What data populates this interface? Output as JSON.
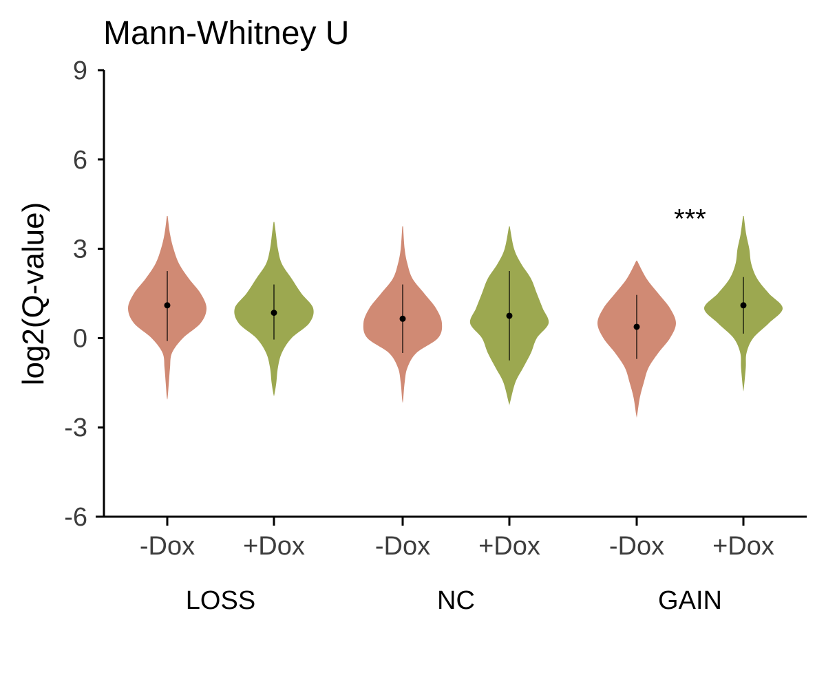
{
  "chart_data": {
    "type": "violin",
    "title": "Mann-Whitney U",
    "ylabel": "log2(Q-value)",
    "xlabel": "",
    "ylim": [
      -6,
      9
    ],
    "yticks": [
      "9",
      "6",
      "3",
      "0",
      "-3",
      "-6"
    ],
    "grid": false,
    "colors": {
      "minus_dox": "#d08a74",
      "plus_dox": "#9ca850"
    },
    "groups": [
      {
        "label": "LOSS",
        "violins": [
          {
            "tick": "-Dox",
            "median": 1.1,
            "line_lo": -0.1,
            "line_hi": 2.25,
            "min": -2.0,
            "max": 4.1,
            "profile": [
              [
                -2.0,
                0.01
              ],
              [
                -1.5,
                0.04
              ],
              [
                -1.0,
                0.07
              ],
              [
                -0.5,
                0.12
              ],
              [
                0.0,
                0.4
              ],
              [
                0.5,
                0.85
              ],
              [
                1.0,
                1.0
              ],
              [
                1.5,
                0.85
              ],
              [
                2.0,
                0.55
              ],
              [
                2.5,
                0.3
              ],
              [
                3.0,
                0.16
              ],
              [
                3.5,
                0.07
              ],
              [
                4.1,
                0.01
              ]
            ]
          },
          {
            "tick": "+Dox",
            "median": 0.85,
            "line_lo": -0.05,
            "line_hi": 1.8,
            "min": -1.9,
            "max": 3.9,
            "profile": [
              [
                -1.9,
                0.01
              ],
              [
                -1.5,
                0.06
              ],
              [
                -1.0,
                0.1
              ],
              [
                -0.5,
                0.2
              ],
              [
                0.0,
                0.45
              ],
              [
                0.5,
                0.9
              ],
              [
                1.0,
                1.0
              ],
              [
                1.5,
                0.7
              ],
              [
                2.0,
                0.45
              ],
              [
                2.5,
                0.2
              ],
              [
                3.0,
                0.1
              ],
              [
                3.5,
                0.05
              ],
              [
                3.9,
                0.01
              ]
            ]
          }
        ]
      },
      {
        "label": "NC",
        "violins": [
          {
            "tick": "-Dox",
            "median": 0.65,
            "line_lo": -0.5,
            "line_hi": 1.8,
            "min": -2.1,
            "max": 3.75,
            "profile": [
              [
                -2.1,
                0.01
              ],
              [
                -1.5,
                0.05
              ],
              [
                -1.0,
                0.12
              ],
              [
                -0.5,
                0.35
              ],
              [
                0.0,
                0.9
              ],
              [
                0.5,
                1.0
              ],
              [
                1.0,
                0.85
              ],
              [
                1.5,
                0.55
              ],
              [
                2.0,
                0.25
              ],
              [
                2.5,
                0.12
              ],
              [
                3.0,
                0.05
              ],
              [
                3.75,
                0.01
              ]
            ]
          },
          {
            "tick": "+Dox",
            "median": 0.75,
            "line_lo": -0.75,
            "line_hi": 2.25,
            "min": -2.2,
            "max": 3.75,
            "profile": [
              [
                -2.2,
                0.01
              ],
              [
                -1.5,
                0.15
              ],
              [
                -1.0,
                0.35
              ],
              [
                -0.5,
                0.55
              ],
              [
                0.0,
                0.7
              ],
              [
                0.5,
                1.0
              ],
              [
                1.0,
                0.85
              ],
              [
                1.5,
                0.7
              ],
              [
                2.0,
                0.55
              ],
              [
                2.5,
                0.3
              ],
              [
                3.0,
                0.12
              ],
              [
                3.75,
                0.01
              ]
            ]
          }
        ]
      },
      {
        "label": "GAIN",
        "violins": [
          {
            "tick": "-Dox",
            "median": 0.38,
            "line_lo": -0.7,
            "line_hi": 1.45,
            "min": -2.6,
            "max": 2.6,
            "profile": [
              [
                -2.6,
                0.01
              ],
              [
                -2.0,
                0.08
              ],
              [
                -1.5,
                0.18
              ],
              [
                -1.0,
                0.3
              ],
              [
                -0.5,
                0.55
              ],
              [
                0.0,
                0.85
              ],
              [
                0.5,
                1.0
              ],
              [
                1.0,
                0.85
              ],
              [
                1.5,
                0.55
              ],
              [
                2.0,
                0.25
              ],
              [
                2.6,
                0.01
              ]
            ]
          },
          {
            "tick": "+Dox",
            "median": 1.1,
            "line_lo": 0.15,
            "line_hi": 2.05,
            "min": -1.7,
            "max": 4.1,
            "profile": [
              [
                -1.7,
                0.01
              ],
              [
                -1.0,
                0.06
              ],
              [
                -0.5,
                0.08
              ],
              [
                0.0,
                0.25
              ],
              [
                0.5,
                0.65
              ],
              [
                1.0,
                1.0
              ],
              [
                1.5,
                0.65
              ],
              [
                2.0,
                0.35
              ],
              [
                2.5,
                0.2
              ],
              [
                3.0,
                0.15
              ],
              [
                3.5,
                0.07
              ],
              [
                4.1,
                0.01
              ]
            ]
          }
        ],
        "annotation": {
          "text": "***",
          "y": 4.2
        }
      }
    ]
  }
}
